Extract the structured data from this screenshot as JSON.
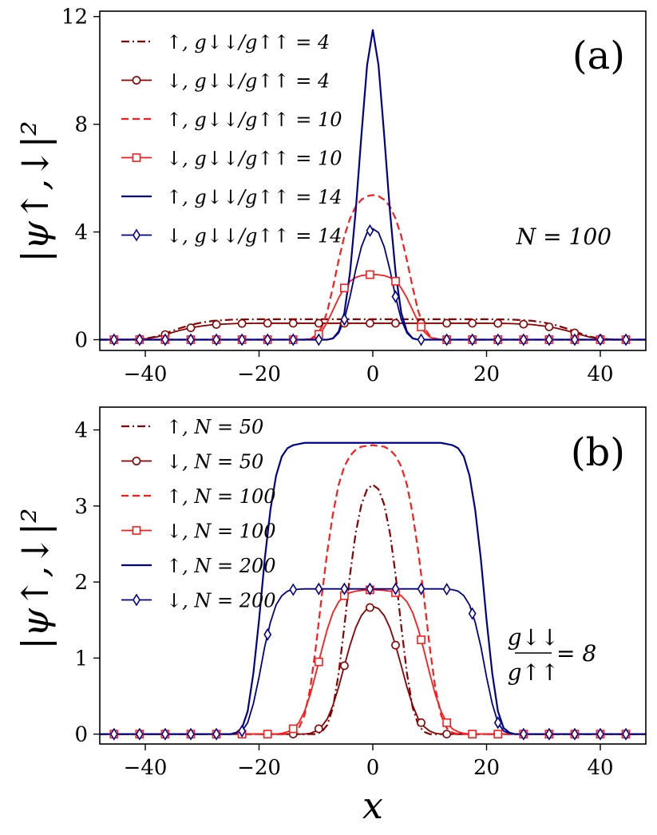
{
  "chart_data": [
    {
      "type": "line",
      "panel_label": "(a)",
      "title": "",
      "xlabel": "",
      "ylabel": "|ψ↑,↓|²",
      "xlim": [
        -48,
        48
      ],
      "ylim": [
        -0.4,
        12.2
      ],
      "xticks": [
        -40,
        -20,
        0,
        20,
        40
      ],
      "xtick_labels": [
        "−40",
        "−20",
        "0",
        "20",
        "40"
      ],
      "yticks": [
        0,
        4,
        8,
        12
      ],
      "ytick_labels": [
        "0",
        "4",
        "8",
        "12"
      ],
      "grid": false,
      "legend_position": "top-left",
      "annotation": "N = 100",
      "series": [
        {
          "name": "↑, g↓↓/g↑↑ = 4",
          "color": "#8b0000",
          "dash": "dashdot",
          "marker": "none",
          "width": 2.2,
          "x": [
            -46,
            -42,
            -40,
            -38,
            -36,
            -34,
            -32,
            -30,
            -28,
            -26,
            -24,
            -20,
            -10,
            0,
            10,
            20,
            24,
            26,
            28,
            30,
            32,
            34,
            36,
            38,
            40,
            42,
            46
          ],
          "y": [
            0,
            0.01,
            0.04,
            0.12,
            0.27,
            0.42,
            0.55,
            0.64,
            0.7,
            0.73,
            0.75,
            0.76,
            0.76,
            0.76,
            0.76,
            0.76,
            0.75,
            0.73,
            0.7,
            0.64,
            0.55,
            0.42,
            0.27,
            0.12,
            0.04,
            0.01,
            0
          ]
        },
        {
          "name": "↓, g↓↓/g↑↑ = 4",
          "color": "#8b0000",
          "dash": "solid",
          "marker": "circle",
          "width": 1.8,
          "x": [
            -46,
            -42,
            -40,
            -38,
            -36,
            -34,
            -32,
            -30,
            -28,
            -26,
            -24,
            -20,
            -10,
            0,
            10,
            20,
            24,
            26,
            28,
            30,
            32,
            34,
            36,
            38,
            40,
            42,
            46
          ],
          "y": [
            0,
            0.01,
            0.03,
            0.1,
            0.22,
            0.34,
            0.44,
            0.51,
            0.56,
            0.58,
            0.6,
            0.61,
            0.61,
            0.61,
            0.61,
            0.61,
            0.6,
            0.58,
            0.56,
            0.51,
            0.44,
            0.34,
            0.22,
            0.1,
            0.03,
            0.01,
            0
          ],
          "marker_x": [
            -45.5,
            -41,
            -36.5,
            -32,
            -27.5,
            -23,
            -18.5,
            -14,
            -9.5,
            -5,
            -0.5,
            4,
            8.5,
            13,
            17.5,
            22,
            26.5,
            31,
            35.5,
            40,
            44.5
          ]
        },
        {
          "name": "↑, g↓↓/g↑↑ = 10",
          "color": "#ff1a1a",
          "dash": "dashed",
          "marker": "none",
          "width": 2.2,
          "x": [
            -46,
            -12,
            -11,
            -10,
            -9,
            -8,
            -7,
            -6,
            -5,
            -4,
            -3,
            -2,
            -1,
            0,
            1,
            2,
            3,
            4,
            5,
            6,
            7,
            8,
            9,
            10,
            11,
            12,
            46
          ],
          "y": [
            0,
            0,
            0.04,
            0.15,
            0.45,
            1.05,
            1.95,
            2.95,
            3.85,
            4.5,
            4.95,
            5.2,
            5.33,
            5.37,
            5.33,
            5.2,
            4.95,
            4.5,
            3.85,
            2.95,
            1.95,
            1.05,
            0.45,
            0.15,
            0.04,
            0,
            0
          ]
        },
        {
          "name": "↓, g↓↓/g↑↑ = 10",
          "color": "#ff1a1a",
          "dash": "solid",
          "marker": "square",
          "width": 1.8,
          "x": [
            -46,
            -12,
            -11,
            -10,
            -9,
            -8,
            -7,
            -6,
            -5,
            -4,
            -3,
            -2,
            -1,
            0,
            1,
            2,
            3,
            4,
            5,
            6,
            7,
            8,
            9,
            10,
            11,
            12,
            46
          ],
          "y": [
            0,
            0,
            0.03,
            0.1,
            0.3,
            0.65,
            1.1,
            1.55,
            1.92,
            2.17,
            2.31,
            2.38,
            2.41,
            2.42,
            2.41,
            2.38,
            2.31,
            2.17,
            1.92,
            1.55,
            1.1,
            0.65,
            0.3,
            0.1,
            0.03,
            0,
            0
          ],
          "marker_x": [
            -45.5,
            -41,
            -36.5,
            -32,
            -27.5,
            -23,
            -18.5,
            -14,
            -9.5,
            -5,
            -0.5,
            4,
            8.5,
            13,
            17.5,
            22,
            26.5,
            31,
            35.5,
            40,
            44.5
          ]
        },
        {
          "name": "↑, g↓↓/g↑↑ = 14",
          "color": "#00008b",
          "dash": "solid",
          "marker": "none",
          "width": 2.2,
          "x": [
            -46,
            -8,
            -7,
            -6,
            -5,
            -4,
            -3,
            -2,
            -1,
            0,
            1,
            2,
            3,
            4,
            5,
            6,
            7,
            8,
            46
          ],
          "y": [
            0,
            0,
            0.05,
            0.3,
            1.0,
            2.5,
            4.8,
            7.6,
            10.2,
            11.5,
            10.2,
            7.6,
            4.8,
            2.5,
            1.0,
            0.3,
            0.05,
            0,
            0
          ]
        },
        {
          "name": "↓, g↓↓/g↑↑ = 14",
          "color": "#00008b",
          "dash": "solid",
          "marker": "diamond",
          "width": 1.8,
          "x": [
            -46,
            -8,
            -7,
            -6,
            -5,
            -4,
            -3,
            -2,
            -1,
            0,
            1,
            2,
            3,
            4,
            5,
            6,
            7,
            8,
            46
          ],
          "y": [
            0,
            0,
            0.04,
            0.25,
            0.75,
            1.6,
            2.6,
            3.45,
            3.98,
            4.12,
            3.98,
            3.45,
            2.6,
            1.6,
            0.75,
            0.25,
            0.04,
            0,
            0
          ],
          "marker_x": [
            -45.5,
            -41,
            -36.5,
            -32,
            -27.5,
            -23,
            -18.5,
            -14,
            -9.5,
            -5,
            -0.5,
            4,
            8.5,
            13,
            17.5,
            22,
            26.5,
            31,
            35.5,
            40,
            44.5
          ]
        }
      ]
    },
    {
      "type": "line",
      "panel_label": "(b)",
      "title": "",
      "xlabel": "x",
      "ylabel": "|ψ↑,↓|²",
      "xlim": [
        -48,
        48
      ],
      "ylim": [
        -0.13,
        4.3
      ],
      "xticks": [
        -40,
        -20,
        0,
        20,
        40
      ],
      "xtick_labels": [
        "−40",
        "−20",
        "0",
        "20",
        "40"
      ],
      "yticks": [
        0,
        1,
        2,
        3,
        4
      ],
      "ytick_labels": [
        "0",
        "1",
        "2",
        "3",
        "4"
      ],
      "grid": false,
      "legend_position": "top-left",
      "annotation": {
        "numerator": "g↓↓",
        "denominator": "g↑↑",
        "value": "= 8"
      },
      "series": [
        {
          "name": "↑, N = 50",
          "color": "#8b0000",
          "dash": "dashdot",
          "marker": "none",
          "width": 2.2,
          "x": [
            -46,
            -10,
            -9,
            -8,
            -7,
            -6,
            -5,
            -4,
            -3,
            -2,
            -1,
            0,
            1,
            2,
            3,
            4,
            5,
            6,
            7,
            8,
            9,
            10,
            46
          ],
          "y": [
            0,
            0,
            0.03,
            0.12,
            0.35,
            0.8,
            1.42,
            2.1,
            2.65,
            3.02,
            3.22,
            3.28,
            3.22,
            3.02,
            2.65,
            2.1,
            1.42,
            0.8,
            0.35,
            0.12,
            0.03,
            0,
            0
          ]
        },
        {
          "name": "↓, N = 50",
          "color": "#8b0000",
          "dash": "solid",
          "marker": "circle",
          "width": 1.8,
          "x": [
            -46,
            -12,
            -11,
            -10,
            -9,
            -8,
            -7,
            -6,
            -5,
            -4,
            -3,
            -2,
            -1,
            0,
            1,
            2,
            3,
            4,
            5,
            6,
            7,
            8,
            9,
            10,
            11,
            12,
            46
          ],
          "y": [
            0,
            0,
            0.01,
            0.04,
            0.1,
            0.2,
            0.38,
            0.62,
            0.9,
            1.17,
            1.4,
            1.56,
            1.65,
            1.68,
            1.65,
            1.56,
            1.4,
            1.17,
            0.9,
            0.62,
            0.38,
            0.2,
            0.1,
            0.04,
            0.01,
            0,
            0
          ],
          "marker_x": [
            -45.5,
            -41,
            -36.5,
            -32,
            -27.5,
            -23,
            -18.5,
            -14,
            -9.5,
            -5,
            -0.5,
            4,
            8.5,
            13,
            17.5,
            22,
            26.5,
            31,
            35.5,
            40,
            44.5
          ]
        },
        {
          "name": "↑, N = 100",
          "color": "#ff1a1a",
          "dash": "dashed",
          "marker": "none",
          "width": 2.2,
          "x": [
            -46,
            -15,
            -14,
            -13,
            -12,
            -11,
            -10,
            -9,
            -8,
            -7,
            -6,
            -5,
            -4,
            -3,
            -2,
            0,
            2,
            3,
            4,
            5,
            6,
            7,
            8,
            9,
            10,
            11,
            12,
            13,
            14,
            15,
            46
          ],
          "y": [
            0,
            0,
            0.02,
            0.08,
            0.25,
            0.6,
            1.15,
            1.8,
            2.4,
            2.9,
            3.28,
            3.52,
            3.66,
            3.74,
            3.78,
            3.8,
            3.78,
            3.74,
            3.66,
            3.52,
            3.28,
            2.9,
            2.4,
            1.8,
            1.15,
            0.6,
            0.25,
            0.08,
            0.02,
            0,
            0
          ]
        },
        {
          "name": "↓, N = 100",
          "color": "#ff1a1a",
          "dash": "solid",
          "marker": "square",
          "width": 1.8,
          "x": [
            -46,
            -17,
            -16,
            -15,
            -14,
            -13,
            -12,
            -11,
            -10,
            -9,
            -8,
            -7,
            -6,
            -5,
            -4,
            -3,
            -2,
            0,
            2,
            3,
            4,
            5,
            6,
            7,
            8,
            9,
            10,
            11,
            12,
            13,
            14,
            15,
            16,
            17,
            46
          ],
          "y": [
            0,
            0,
            0.01,
            0.03,
            0.07,
            0.15,
            0.3,
            0.52,
            0.8,
            1.1,
            1.38,
            1.6,
            1.74,
            1.82,
            1.86,
            1.88,
            1.89,
            1.9,
            1.89,
            1.88,
            1.86,
            1.82,
            1.74,
            1.6,
            1.38,
            1.1,
            0.8,
            0.52,
            0.3,
            0.15,
            0.07,
            0.03,
            0.01,
            0,
            0
          ],
          "marker_x": [
            -45.5,
            -41,
            -36.5,
            -32,
            -27.5,
            -23,
            -18.5,
            -14,
            -9.5,
            -5,
            -0.5,
            4,
            8.5,
            13,
            17.5,
            22,
            26.5,
            31,
            35.5,
            40,
            44.5
          ]
        },
        {
          "name": "↑, N = 200",
          "color": "#00008b",
          "dash": "solid",
          "marker": "none",
          "width": 2.2,
          "x": [
            -46,
            -25,
            -24,
            -23,
            -22,
            -21,
            -20,
            -19,
            -18,
            -17,
            -16,
            -15,
            -14,
            -12,
            0,
            12,
            14,
            15,
            16,
            17,
            18,
            19,
            20,
            21,
            22,
            23,
            24,
            25,
            46
          ],
          "y": [
            0,
            0,
            0.02,
            0.08,
            0.3,
            0.8,
            1.5,
            2.3,
            2.95,
            3.4,
            3.65,
            3.76,
            3.8,
            3.83,
            3.83,
            3.83,
            3.8,
            3.76,
            3.65,
            3.4,
            2.95,
            2.3,
            1.5,
            0.8,
            0.3,
            0.08,
            0.02,
            0,
            0
          ]
        },
        {
          "name": "↓, N = 200",
          "color": "#00008b",
          "dash": "solid",
          "marker": "diamond",
          "width": 1.8,
          "x": [
            -46,
            -25,
            -24,
            -23,
            -22,
            -21,
            -20,
            -19,
            -18,
            -17,
            -16,
            -15,
            -14,
            -12,
            0,
            12,
            14,
            15,
            16,
            17,
            18,
            19,
            20,
            21,
            22,
            23,
            24,
            25,
            46
          ],
          "y": [
            0,
            0,
            0.01,
            0.04,
            0.15,
            0.4,
            0.75,
            1.15,
            1.47,
            1.7,
            1.82,
            1.88,
            1.9,
            1.91,
            1.91,
            1.91,
            1.9,
            1.88,
            1.82,
            1.7,
            1.47,
            1.15,
            0.75,
            0.4,
            0.15,
            0.04,
            0.01,
            0,
            0
          ],
          "marker_x": [
            -45.5,
            -41,
            -36.5,
            -32,
            -27.5,
            -23,
            -18.5,
            -14,
            -9.5,
            -5,
            -0.5,
            4,
            8.5,
            13,
            17.5,
            22,
            26.5,
            31,
            35.5,
            40,
            44.5
          ]
        }
      ]
    }
  ]
}
